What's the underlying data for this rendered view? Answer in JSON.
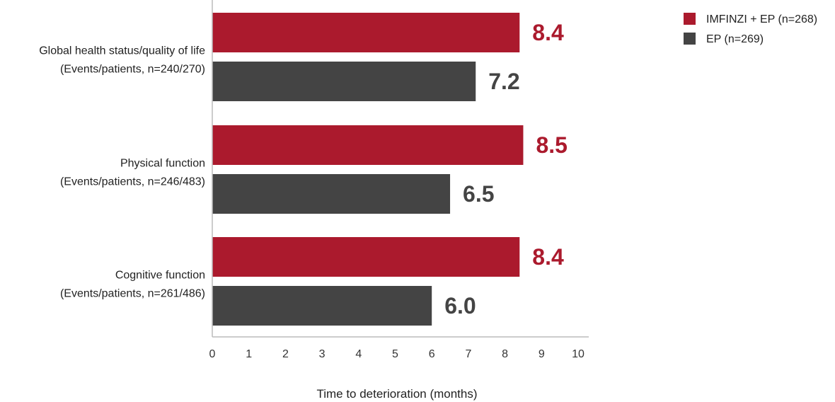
{
  "chart_data": {
    "type": "bar",
    "orientation": "horizontal",
    "categories": [
      {
        "name": "Global health status/quality of life",
        "detail": "(Events/patients, n=240/270)"
      },
      {
        "name": "Physical function",
        "detail": "(Events/patients, n=246/483)"
      },
      {
        "name": "Cognitive function",
        "detail": "(Events/patients, n=261/486)"
      }
    ],
    "series": [
      {
        "name": "IMFINZI + EP (n=268)",
        "color": "#ab1a2d",
        "values": [
          8.4,
          8.5,
          8.4
        ],
        "labels": [
          "8.4",
          "8.5",
          "8.4"
        ]
      },
      {
        "name": "EP (n=269)",
        "color": "#444444",
        "values": [
          7.2,
          6.5,
          6.0
        ],
        "labels": [
          "7.2",
          "6.5",
          "6.0"
        ]
      }
    ],
    "xlabel": "Time to deterioration (months)",
    "ylabel": "",
    "xlim": [
      0,
      10
    ],
    "xticks": [
      "0",
      "1",
      "2",
      "3",
      "4",
      "5",
      "6",
      "7",
      "8",
      "9",
      "10"
    ],
    "grid": false,
    "legend_position": "top-right"
  }
}
